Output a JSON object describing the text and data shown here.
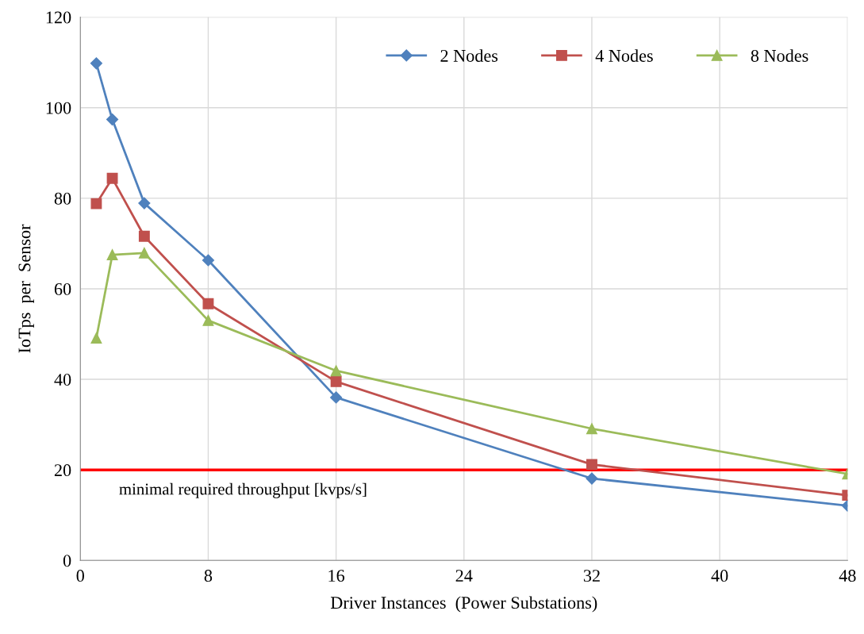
{
  "chart_data": {
    "type": "line",
    "xlabel": "Driver Instances  (Power Substations)",
    "ylabel": "IoTps  per  Sensor",
    "x": [
      1,
      2,
      4,
      8,
      16,
      32,
      48
    ],
    "series": [
      {
        "name": "2 Nodes",
        "color": "#4f81bd",
        "marker": "diamond",
        "values": [
          109.8,
          97.4,
          78.9,
          66.3,
          36.0,
          18.1,
          12.1
        ]
      },
      {
        "name": "4 Nodes",
        "color": "#c0504d",
        "marker": "square",
        "values": [
          78.8,
          84.4,
          71.6,
          56.7,
          39.5,
          21.2,
          14.4
        ]
      },
      {
        "name": "8 Nodes",
        "color": "#9bbb59",
        "marker": "triangle",
        "values": [
          49.1,
          67.5,
          67.9,
          53.0,
          41.9,
          29.1,
          19.1
        ]
      }
    ],
    "xlim": [
      0,
      48
    ],
    "xticks": [
      0,
      8,
      16,
      24,
      32,
      40,
      48
    ],
    "ylim": [
      0,
      120
    ],
    "yticks": [
      0,
      20,
      40,
      60,
      80,
      100,
      120
    ],
    "ref_lines": [
      {
        "axis": "y",
        "value": 20,
        "label": "minimal required throughput [kvps/s]",
        "color": "#ff0000"
      }
    ],
    "grid": true,
    "legend": "top right",
    "line_style": "solid"
  }
}
